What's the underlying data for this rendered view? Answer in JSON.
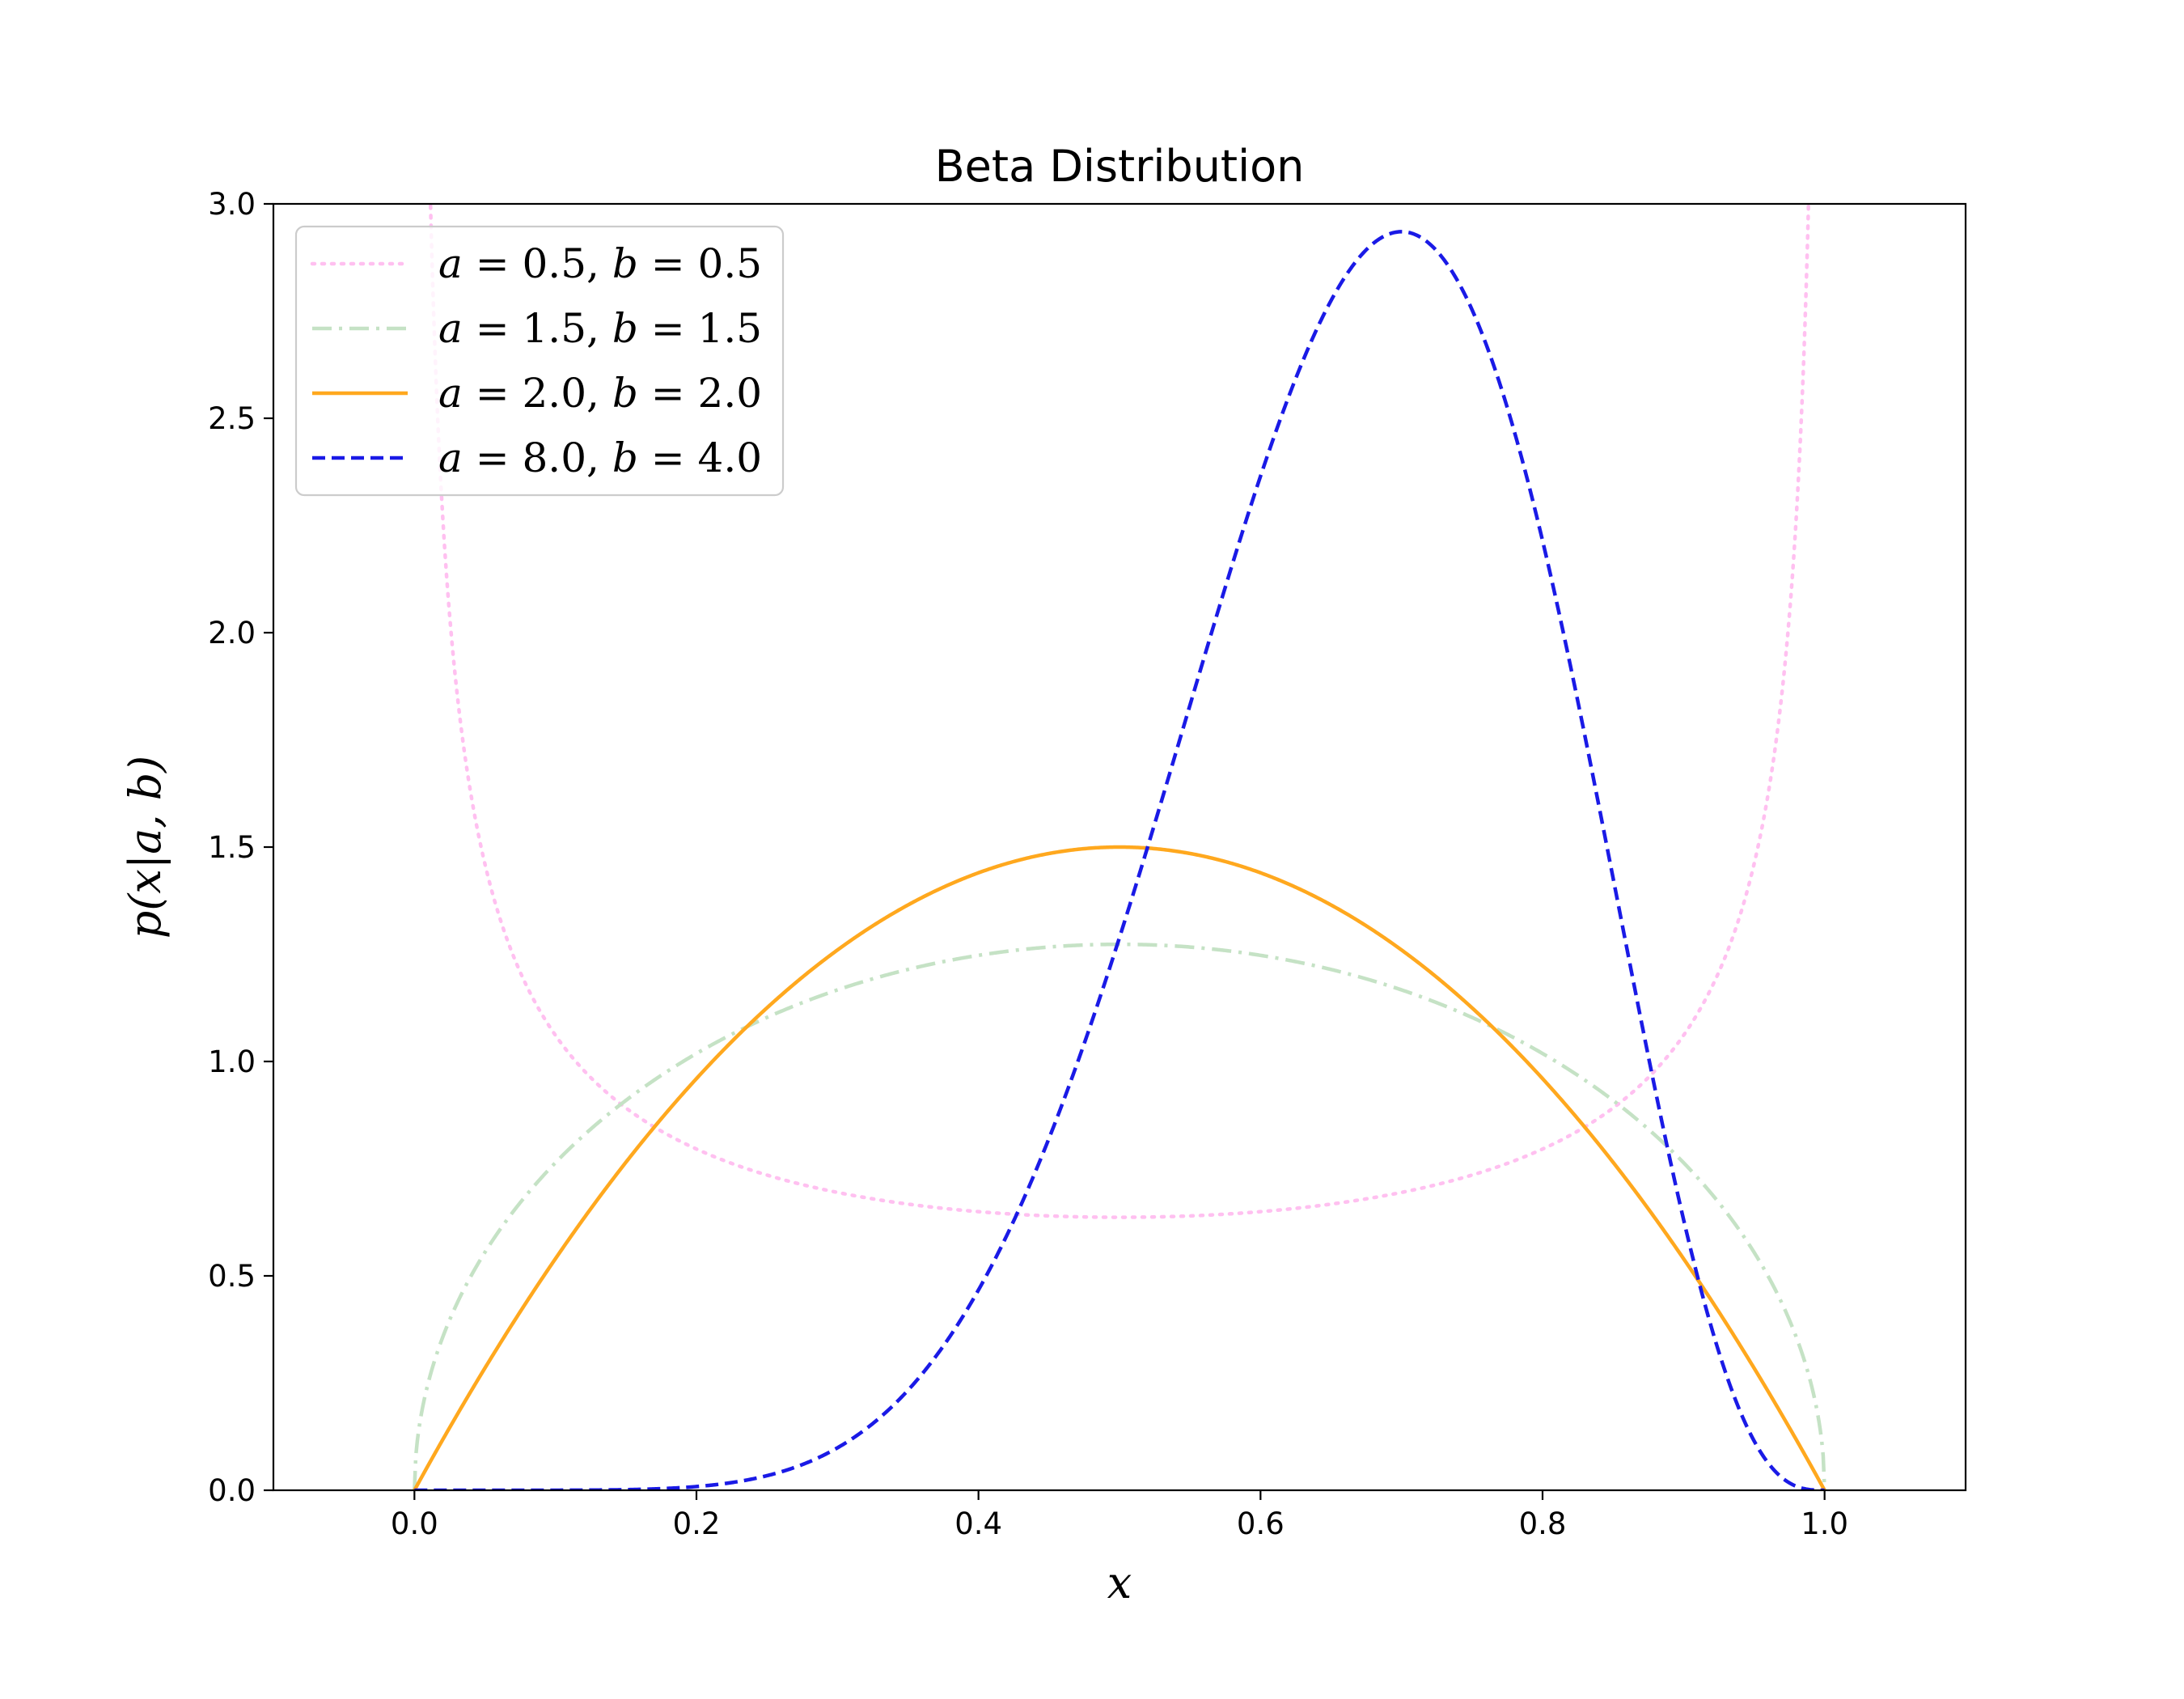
{
  "chart_data": {
    "type": "line",
    "title": "Beta Distribution",
    "xlabel": "x",
    "ylabel": "p(x|a, b)",
    "xlim": [
      -0.1,
      1.1
    ],
    "ylim": [
      0.0,
      3.0
    ],
    "xticks": [
      0.0,
      0.2,
      0.4,
      0.6,
      0.8,
      1.0
    ],
    "xtick_labels": [
      "0.0",
      "0.2",
      "0.4",
      "0.6",
      "0.8",
      "1.0"
    ],
    "yticks": [
      0.0,
      0.5,
      1.0,
      1.5,
      2.0,
      2.5,
      3.0
    ],
    "ytick_labels": [
      "0.0",
      "0.5",
      "1.0",
      "1.5",
      "2.0",
      "2.5",
      "3.0"
    ],
    "grid": false,
    "legend_position": "upper-left",
    "series": [
      {
        "name": "a = 0.5, b = 0.5",
        "a": 0.5,
        "b": 0.5,
        "color": "#ffc0f0",
        "linestyle": "dotted"
      },
      {
        "name": "a = 1.5, b = 1.5",
        "a": 1.5,
        "b": 1.5,
        "color": "#c5e2c5",
        "linestyle": "dashdot"
      },
      {
        "name": "a = 2.0, b = 2.0",
        "a": 2.0,
        "b": 2.0,
        "color": "#ffa81e",
        "linestyle": "solid"
      },
      {
        "name": "a = 8.0, b = 4.0",
        "a": 8.0,
        "b": 4.0,
        "color": "#1a1ae6",
        "linestyle": "dashed"
      }
    ],
    "legend": [
      {
        "a": "0.5",
        "b": "0.5"
      },
      {
        "a": "1.5",
        "b": "1.5"
      },
      {
        "a": "2.0",
        "b": "2.0"
      },
      {
        "a": "8.0",
        "b": "4.0"
      }
    ]
  }
}
